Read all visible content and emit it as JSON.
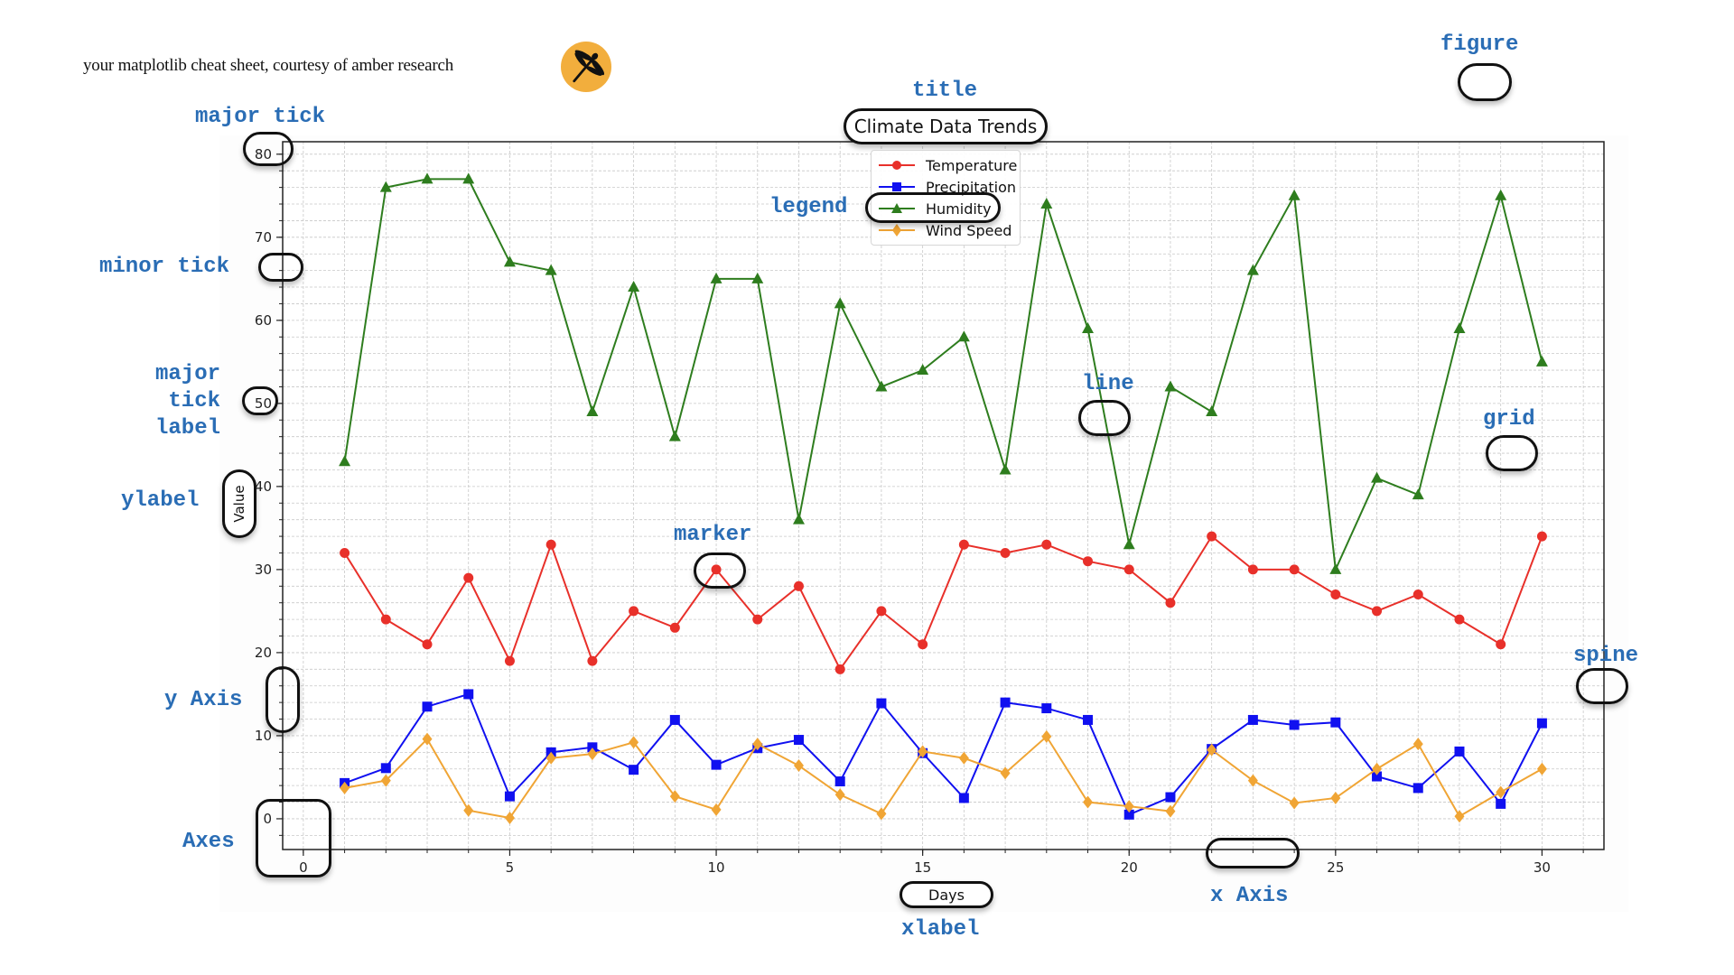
{
  "header": {
    "text": "your matplotlib cheat sheet, courtesy of amber research",
    "logo_icon": "dragonfly-icon",
    "logo_color": "#F2AE3D"
  },
  "annotations": {
    "figure": "figure",
    "title": "title",
    "major_tick": "major tick",
    "minor_tick": "minor tick",
    "major_tick_label": "major\n tick\nlabel",
    "ylabel": "ylabel",
    "legend": "legend",
    "line": "line",
    "grid": "grid",
    "marker": "marker",
    "y_axis": "y Axis",
    "spine": "spine",
    "axes": "Axes",
    "x_axis": "x Axis",
    "xlabel": "xlabel"
  },
  "colors": {
    "annotation": "#2A6DB5",
    "temperature": "#E8302A",
    "precipitation": "#1010F0",
    "humidity": "#2E7D1E",
    "wind_speed": "#F0A535",
    "grid": "#c8c8c8"
  },
  "chart_data": {
    "type": "line",
    "title": "Climate Data Trends",
    "xlabel": "Days",
    "ylabel": "Value",
    "xlim": [
      -0.5,
      31.5
    ],
    "ylim": [
      -3.7,
      81.5
    ],
    "xticks": [
      0,
      5,
      10,
      15,
      20,
      25,
      30
    ],
    "yticks": [
      0,
      10,
      20,
      30,
      40,
      50,
      60,
      70,
      80
    ],
    "minor_xtick_step": 1,
    "minor_ytick_step": 2,
    "grid": true,
    "legend_position": "upper center",
    "x": [
      1,
      2,
      3,
      4,
      5,
      6,
      7,
      8,
      9,
      10,
      11,
      12,
      13,
      14,
      15,
      16,
      17,
      18,
      19,
      20,
      21,
      22,
      23,
      24,
      25,
      26,
      27,
      28,
      29,
      30
    ],
    "series": [
      {
        "name": "Temperature",
        "marker": "circle",
        "color": "#E8302A",
        "values": [
          32,
          24,
          21,
          29,
          19,
          33,
          19,
          25,
          23,
          30,
          24,
          28,
          18,
          25,
          21,
          33,
          32,
          33,
          31,
          30,
          26,
          34,
          30,
          30,
          27,
          25,
          27,
          24,
          21,
          34
        ]
      },
      {
        "name": "Precipitation",
        "marker": "square",
        "color": "#1010F0",
        "values": [
          4.3,
          6.1,
          13.5,
          15.0,
          2.7,
          8.0,
          8.6,
          5.9,
          11.9,
          6.5,
          8.5,
          9.5,
          4.5,
          13.9,
          7.9,
          2.5,
          14.0,
          13.3,
          11.9,
          0.5,
          2.6,
          8.4,
          11.9,
          11.3,
          11.6,
          5.1,
          3.7,
          8.1,
          1.8,
          11.5
        ]
      },
      {
        "name": "Humidity",
        "marker": "triangle",
        "color": "#2E7D1E",
        "values": [
          43,
          76,
          77,
          77,
          67,
          66,
          49,
          64,
          46,
          65,
          65,
          36,
          62,
          52,
          54,
          58,
          42,
          74,
          59,
          33,
          52,
          49,
          66,
          75,
          30,
          41,
          39,
          59,
          75,
          55
        ]
      },
      {
        "name": "Wind Speed",
        "marker": "diamond",
        "color": "#F0A535",
        "values": [
          3.7,
          4.6,
          9.6,
          1.0,
          0.1,
          7.3,
          7.8,
          9.2,
          2.7,
          1.1,
          9.0,
          6.4,
          2.9,
          0.6,
          8.1,
          7.3,
          5.5,
          9.9,
          2.0,
          1.5,
          0.9,
          8.3,
          4.6,
          1.9,
          2.5,
          6.0,
          9.0,
          0.3,
          3.2,
          6.0
        ]
      }
    ]
  }
}
